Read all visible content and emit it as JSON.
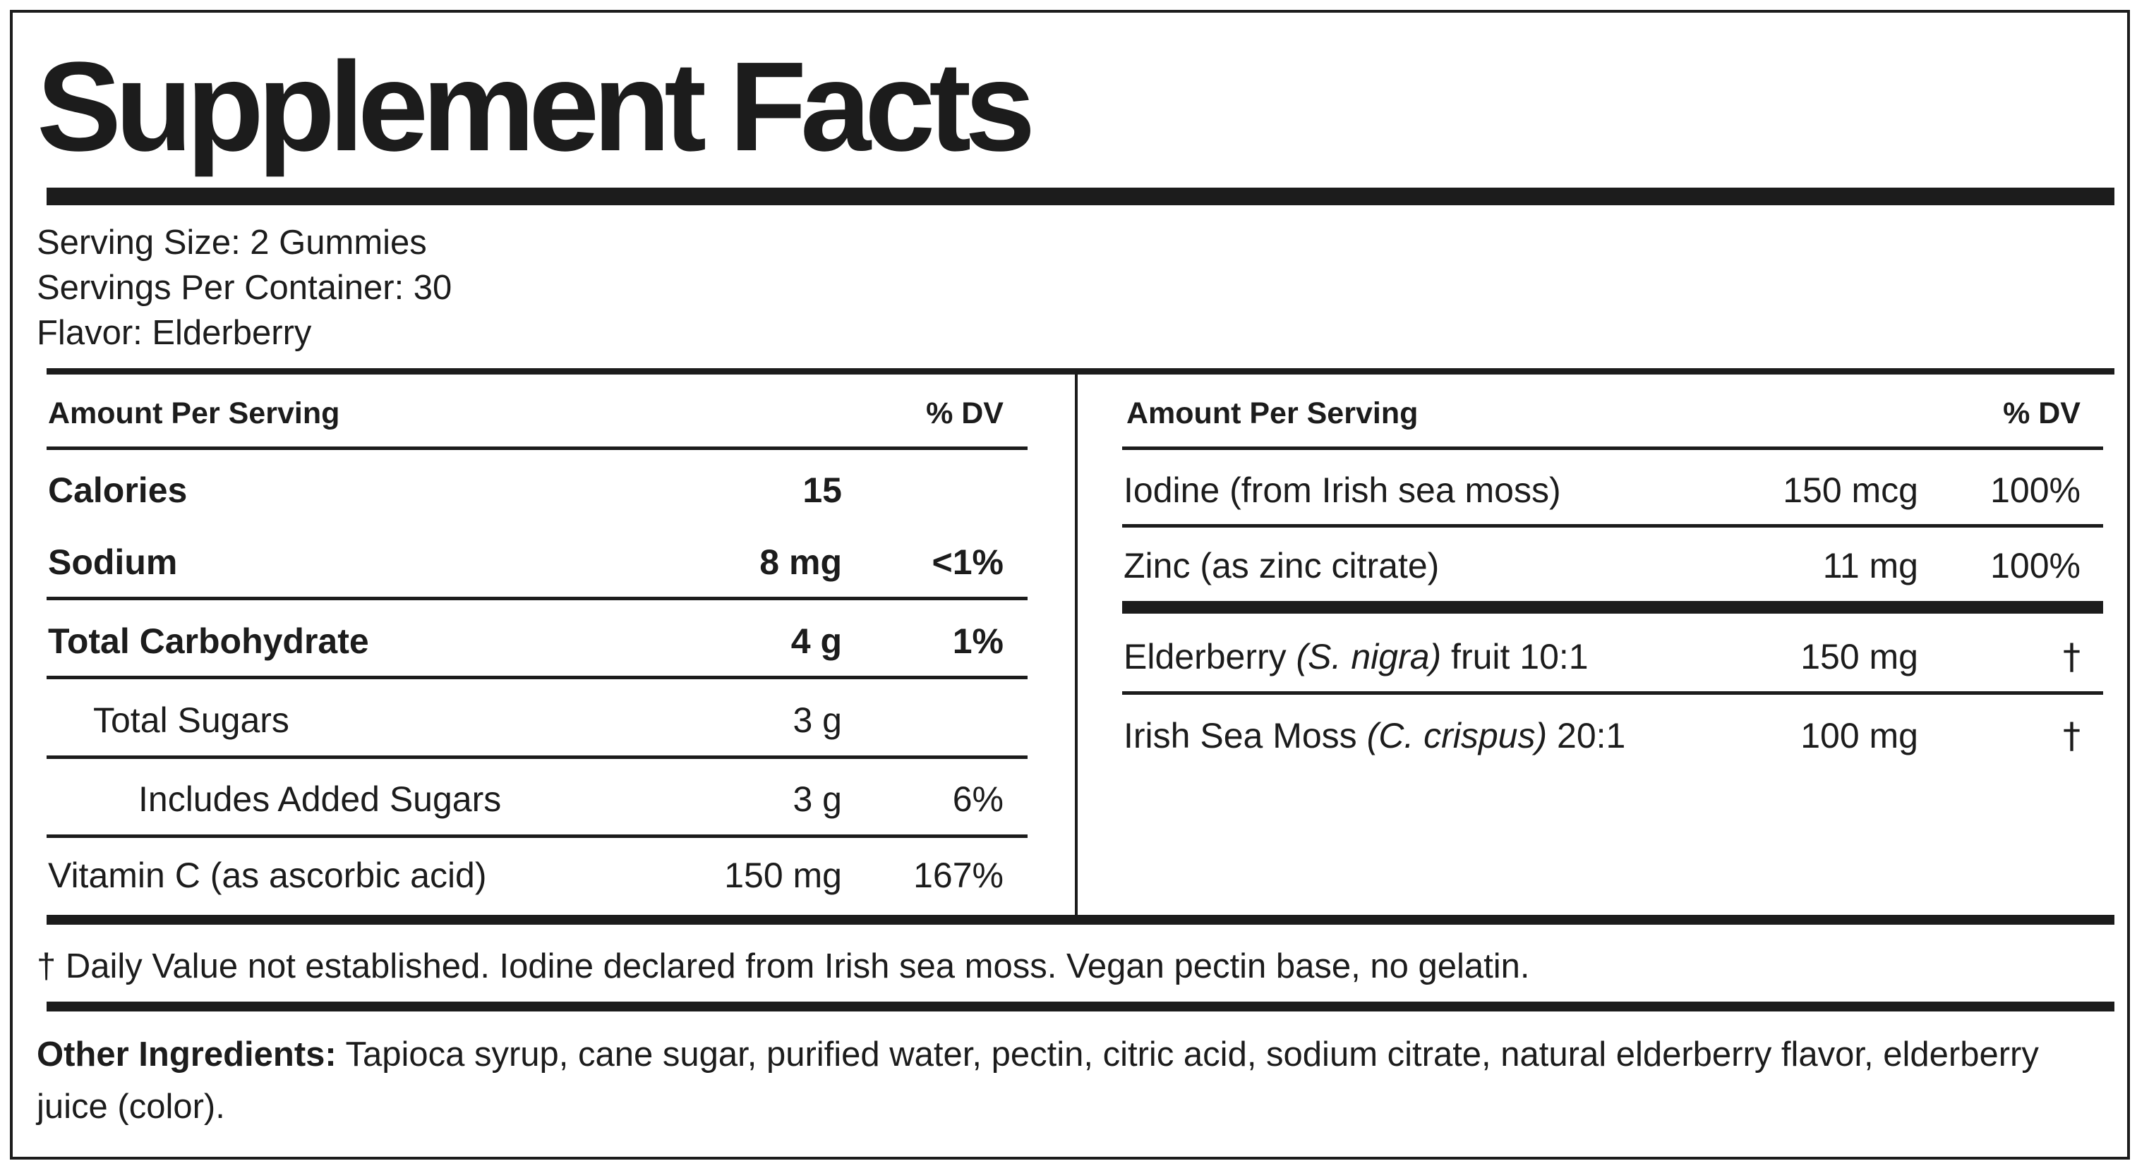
{
  "title": "Supplement Facts",
  "serving": {
    "size": "Serving Size: 2 Gummies",
    "per_container": "Servings Per Container: 30",
    "flavor": "Flavor: Elderberry"
  },
  "left_panel": {
    "header_amount": "Amount Per Serving",
    "header_dv": "% DV",
    "rows": [
      {
        "name": "Calories",
        "amount": "15",
        "dv": ""
      },
      {
        "name": "Sodium",
        "amount": "8 mg",
        "dv": "<1%"
      },
      {
        "name": "Total Carbohydrate",
        "amount": "4 g",
        "dv": "1%"
      },
      {
        "name": "Total Sugars",
        "amount": "3 g",
        "dv": ""
      },
      {
        "name": "Includes Added Sugars",
        "amount": "3 g",
        "dv": "6%"
      },
      {
        "name": "Vitamin C (as ascorbic acid)",
        "amount": "150 mg",
        "dv": "167%"
      }
    ]
  },
  "right_panel": {
    "header_amount": "Amount Per Serving",
    "header_dv": "% DV",
    "rows": [
      {
        "name": "Iodine (from Irish sea moss)",
        "amount": "150 mcg",
        "dv": "100%"
      },
      {
        "name": "Zinc (as zinc citrate)",
        "amount": "11 mg",
        "dv": "100%"
      },
      {
        "name_pre": "Elderberry ",
        "name_italic": "(S. nigra)",
        "name_post": " fruit 10:1",
        "amount": "150 mg",
        "dv": "†"
      },
      {
        "name_pre": "Irish Sea Moss ",
        "name_italic": "(C. crispus)",
        "name_post": " 20:1",
        "amount": "100 mg",
        "dv": "†"
      }
    ]
  },
  "footnote": "† Daily Value not established.  Iodine declared from Irish sea moss. Vegan pectin base, no gelatin.",
  "other_ingredients": {
    "label": "Other Ingredients:",
    "text": " Tapioca syrup, cane sugar, purified water, pectin, citric acid, sodium citrate, natural elderberry flavor, elderberry juice (color)."
  }
}
